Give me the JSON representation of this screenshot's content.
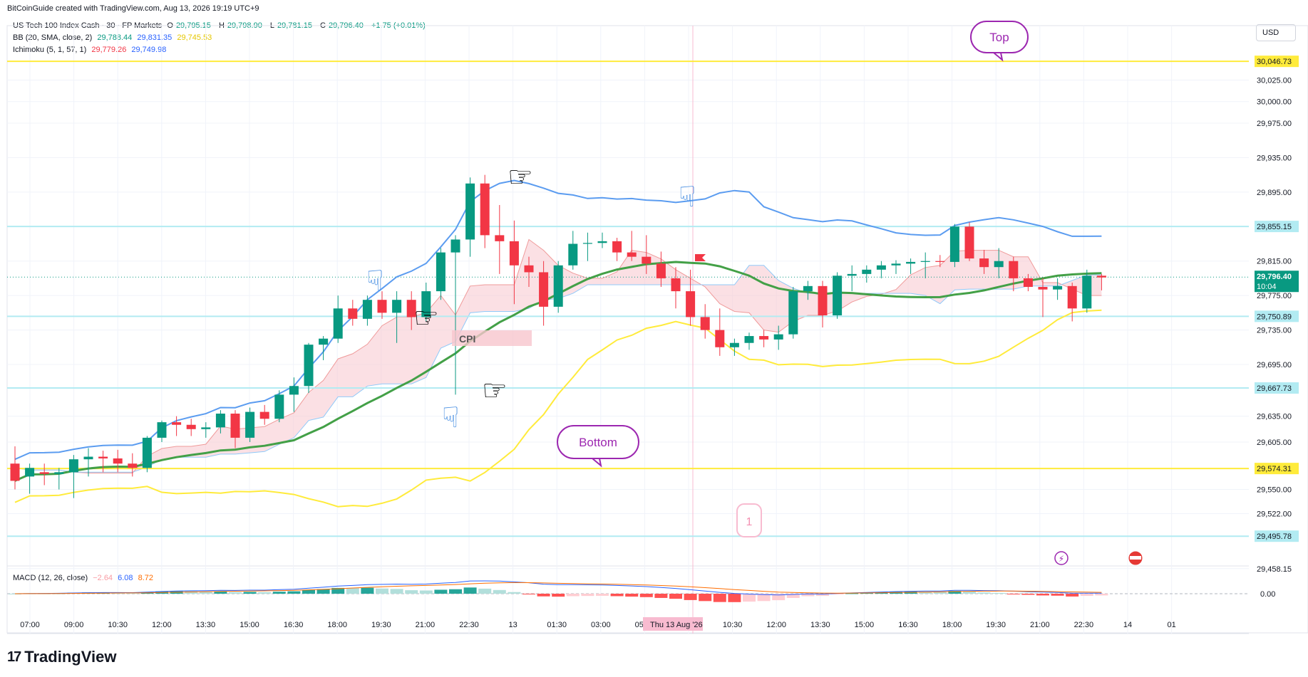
{
  "header": {
    "attribution": "BitCoinGuide created with TradingView.com, Aug 13, 2026 19:19 UTC+9"
  },
  "symbol": {
    "name": "US Tech 100 Index Cash · 30 · FP Markets",
    "o_label": "O",
    "o": "29,795.15",
    "h_label": "H",
    "h": "29,798.90",
    "l_label": "L",
    "l": "29,781.15",
    "c_label": "C",
    "c": "29,796.40",
    "change": "+1.75 (+0.01%)"
  },
  "indicators": {
    "bb": {
      "label": "BB (20, SMA, close, 2)",
      "basis": "29,788.44",
      "upper": "29,831.35",
      "lower": "29,745.53"
    },
    "ichimoku": {
      "label": "Ichimoku (5, 1, 57, 1)",
      "v1": "29,779.26",
      "v2": "29,749.98"
    },
    "macd": {
      "label": "MACD (12, 26, close)",
      "hist": "−2.64",
      "macd": "6.08",
      "signal": "8.72"
    }
  },
  "currency_button": "USD",
  "annotations": {
    "top": "Top",
    "bottom": "Bottom",
    "cpi": "CPI",
    "marker_one": "1"
  },
  "brand": "TradingView",
  "colors": {
    "up": "#089981",
    "down": "#f23645",
    "bb_upper": "#5b9cf0",
    "bb_basis": "#43a047",
    "bb_lower": "#ffeb3b",
    "cloud": "#f8c6cd",
    "cloud_blue": "#bbdefb",
    "level_yellow": "#ffeb3b",
    "level_cyan": "#b2ebf2",
    "annotation": "#9c27b0"
  },
  "chart_data": {
    "type": "candlestick",
    "y_ticks": [
      "30,025.00",
      "30,000.00",
      "29,975.00",
      "29,935.00",
      "29,895.00",
      "29,815.00",
      "29,775.00",
      "29,735.00",
      "29,695.00",
      "29,635.00",
      "29,605.00",
      "29,550.00",
      "29,522.00",
      "29,458.15"
    ],
    "x_ticks": [
      "07:00",
      "09:00",
      "10:30",
      "12:00",
      "13:30",
      "15:00",
      "16:30",
      "18:00",
      "19:30",
      "21:00",
      "22:30",
      "13",
      "01:30",
      "03:00",
      "05:30",
      "09:00",
      "10:30",
      "12:00",
      "13:30",
      "15:00",
      "16:30",
      "18:00",
      "19:30",
      "21:00",
      "22:30",
      "14",
      "01"
    ],
    "crosshair_label": "Thu 13 Aug '26",
    "levels": [
      {
        "price": 30046.73,
        "label": "30,046.73",
        "style": "yellow"
      },
      {
        "price": 29855.15,
        "label": "29,855.15",
        "style": "cyan"
      },
      {
        "price": 29750.89,
        "label": "29,750.89",
        "style": "cyan"
      },
      {
        "price": 29667.73,
        "label": "29,667.73",
        "style": "cyan"
      },
      {
        "price": 29574.31,
        "label": "29,574.31",
        "style": "yellow"
      },
      {
        "price": 29495.78,
        "label": "29,495.78",
        "style": "cyan"
      }
    ],
    "last_price": {
      "price": 29796.4,
      "label": "29,796.40",
      "countdown": "10:04"
    },
    "candles": [
      [
        29580,
        29600,
        29550,
        29560
      ],
      [
        29565,
        29580,
        29545,
        29575
      ],
      [
        29570,
        29580,
        29555,
        29568
      ],
      [
        29568,
        29575,
        29550,
        29570
      ],
      [
        29570,
        29590,
        29540,
        29585
      ],
      [
        29585,
        29598,
        29565,
        29588
      ],
      [
        29588,
        29595,
        29570,
        29586
      ],
      [
        29586,
        29596,
        29570,
        29580
      ],
      [
        29580,
        29592,
        29565,
        29575
      ],
      [
        29575,
        29612,
        29570,
        29610
      ],
      [
        29610,
        29630,
        29605,
        29628
      ],
      [
        29628,
        29635,
        29612,
        29625
      ],
      [
        29625,
        29632,
        29612,
        29620
      ],
      [
        29620,
        29628,
        29610,
        29622
      ],
      [
        29622,
        29642,
        29615,
        29638
      ],
      [
        29638,
        29642,
        29598,
        29610
      ],
      [
        29610,
        29645,
        29605,
        29640
      ],
      [
        29640,
        29648,
        29625,
        29632
      ],
      [
        29632,
        29665,
        29628,
        29660
      ],
      [
        29660,
        29680,
        29640,
        29670
      ],
      [
        29670,
        29720,
        29662,
        29718
      ],
      [
        29718,
        29728,
        29700,
        29725
      ],
      [
        29725,
        29775,
        29720,
        29760
      ],
      [
        29760,
        29770,
        29740,
        29748
      ],
      [
        29748,
        29775,
        29740,
        29770
      ],
      [
        29770,
        29780,
        29748,
        29755
      ],
      [
        29755,
        29780,
        29720,
        29770
      ],
      [
        29770,
        29780,
        29735,
        29750
      ],
      [
        29750,
        29790,
        29745,
        29780
      ],
      [
        29780,
        29830,
        29770,
        29825
      ],
      [
        29825,
        29845,
        29660,
        29840
      ],
      [
        29840,
        29912,
        29820,
        29905
      ],
      [
        29905,
        29915,
        29830,
        29845
      ],
      [
        29845,
        29880,
        29800,
        29838
      ],
      [
        29838,
        29862,
        29765,
        29810
      ],
      [
        29810,
        29820,
        29785,
        29802
      ],
      [
        29802,
        29815,
        29740,
        29762
      ],
      [
        29762,
        29815,
        29755,
        29810
      ],
      [
        29810,
        29850,
        29805,
        29835
      ],
      [
        29835,
        29848,
        29815,
        29836
      ],
      [
        29836,
        29848,
        29830,
        29838
      ],
      [
        29838,
        29842,
        29815,
        29825
      ],
      [
        29825,
        29850,
        29815,
        29820
      ],
      [
        29820,
        29845,
        29800,
        29812
      ],
      [
        29812,
        29826,
        29785,
        29795
      ],
      [
        29795,
        29808,
        29760,
        29780
      ],
      [
        29780,
        29805,
        29740,
        29750
      ],
      [
        29750,
        29765,
        29725,
        29735
      ],
      [
        29735,
        29760,
        29705,
        29715
      ],
      [
        29715,
        29725,
        29705,
        29720
      ],
      [
        29720,
        29732,
        29712,
        29728
      ],
      [
        29728,
        29735,
        29715,
        29724
      ],
      [
        29724,
        29740,
        29712,
        29730
      ],
      [
        29730,
        29785,
        29725,
        29780
      ],
      [
        29780,
        29792,
        29770,
        29786
      ],
      [
        29786,
        29792,
        29738,
        29752
      ],
      [
        29752,
        29802,
        29748,
        29798
      ],
      [
        29798,
        29810,
        29780,
        29800
      ],
      [
        29800,
        29810,
        29790,
        29805
      ],
      [
        29805,
        29815,
        29795,
        29810
      ],
      [
        29810,
        29816,
        29800,
        29812
      ],
      [
        29812,
        29818,
        29800,
        29814
      ],
      [
        29814,
        29825,
        29795,
        29815
      ],
      [
        29815,
        29822,
        29808,
        29814
      ],
      [
        29814,
        29858,
        29808,
        29855
      ],
      [
        29855,
        29860,
        29815,
        29818
      ],
      [
        29818,
        29828,
        29800,
        29808
      ],
      [
        29808,
        29830,
        29795,
        29815
      ],
      [
        29815,
        29820,
        29780,
        29795
      ],
      [
        29795,
        29800,
        29780,
        29785
      ],
      [
        29785,
        29795,
        29750,
        29782
      ],
      [
        29782,
        29795,
        29770,
        29786
      ],
      [
        29786,
        29790,
        29745,
        29760
      ],
      [
        29760,
        29805,
        29755,
        29798
      ],
      [
        29798,
        29800,
        29781,
        29796
      ]
    ]
  }
}
